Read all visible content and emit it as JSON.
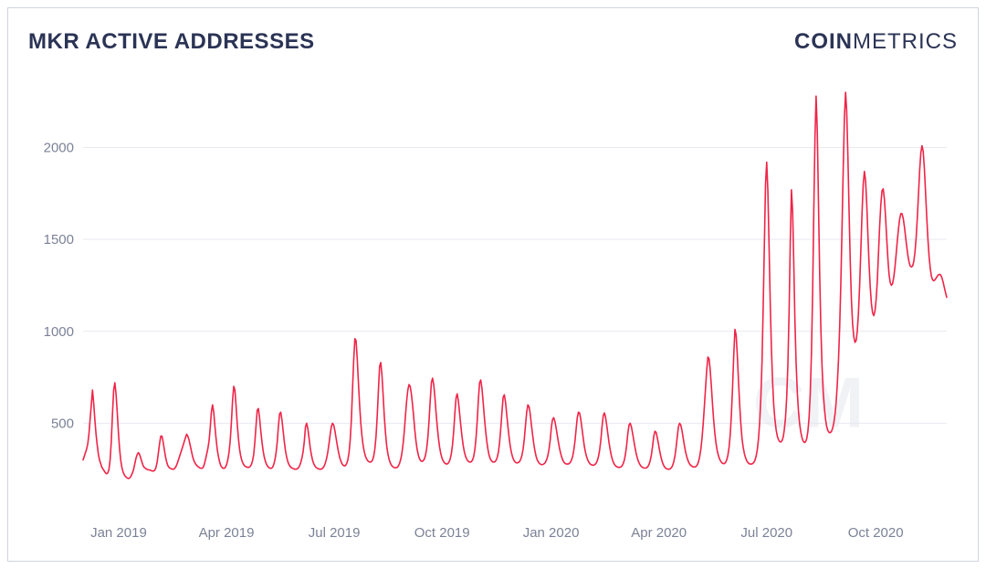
{
  "title": "MKR ACTIVE ADDRESSES",
  "title_color": "#2b3455",
  "brand": {
    "bold": "COIN",
    "rest": "METRICS",
    "color": "#2b3455"
  },
  "watermark": "CM",
  "chart": {
    "type": "line",
    "background_color": "#ffffff",
    "grid_color": "#e7e9f0",
    "axis_label_color": "#7b8296",
    "axis_label_fontsize": 15,
    "line_color": "#ef2447",
    "line_width": 1.6,
    "ylim": [
      0,
      2400
    ],
    "yticks": [
      500,
      1000,
      1500,
      2000
    ],
    "xticks": [
      {
        "i": 30,
        "label": "Jan 2019"
      },
      {
        "i": 121,
        "label": "Apr 2019"
      },
      {
        "i": 212,
        "label": "Jul 2019"
      },
      {
        "i": 303,
        "label": "Oct 2019"
      },
      {
        "i": 395,
        "label": "Jan 2020"
      },
      {
        "i": 486,
        "label": "Apr 2020"
      },
      {
        "i": 577,
        "label": "Jul 2020"
      },
      {
        "i": 669,
        "label": "Oct 2020"
      }
    ],
    "n_points": 730,
    "values": [
      300,
      320,
      340,
      360,
      390,
      440,
      520,
      600,
      680,
      610,
      520,
      440,
      380,
      330,
      300,
      280,
      260,
      250,
      240,
      230,
      225,
      230,
      250,
      300,
      400,
      550,
      680,
      720,
      660,
      560,
      450,
      360,
      300,
      260,
      235,
      220,
      210,
      205,
      200,
      200,
      205,
      215,
      230,
      250,
      280,
      310,
      330,
      340,
      330,
      310,
      290,
      270,
      260,
      255,
      250,
      248,
      246,
      244,
      242,
      240,
      240,
      245,
      260,
      290,
      340,
      390,
      430,
      430,
      400,
      360,
      320,
      290,
      270,
      260,
      255,
      252,
      250,
      250,
      255,
      265,
      280,
      300,
      320,
      340,
      360,
      380,
      400,
      420,
      440,
      430,
      410,
      380,
      350,
      320,
      300,
      285,
      275,
      268,
      262,
      258,
      255,
      255,
      260,
      275,
      300,
      330,
      360,
      400,
      470,
      560,
      600,
      560,
      490,
      420,
      360,
      320,
      290,
      270,
      260,
      255,
      255,
      260,
      275,
      300,
      340,
      400,
      500,
      620,
      700,
      680,
      600,
      500,
      420,
      360,
      320,
      295,
      280,
      270,
      265,
      262,
      260,
      260,
      265,
      275,
      295,
      330,
      400,
      490,
      570,
      580,
      530,
      460,
      400,
      350,
      315,
      290,
      275,
      265,
      258,
      255,
      255,
      260,
      275,
      300,
      340,
      400,
      480,
      550,
      560,
      520,
      460,
      400,
      350,
      315,
      290,
      275,
      265,
      258,
      255,
      252,
      250,
      250,
      252,
      258,
      268,
      285,
      310,
      345,
      400,
      480,
      500,
      470,
      420,
      370,
      330,
      300,
      280,
      268,
      260,
      255,
      252,
      250,
      250,
      252,
      258,
      268,
      285,
      310,
      345,
      390,
      440,
      480,
      500,
      490,
      460,
      420,
      380,
      345,
      315,
      295,
      280,
      272,
      268,
      270,
      280,
      300,
      340,
      410,
      520,
      680,
      840,
      960,
      950,
      850,
      720,
      600,
      500,
      430,
      380,
      345,
      320,
      305,
      295,
      290,
      288,
      290,
      300,
      320,
      360,
      430,
      540,
      680,
      810,
      830,
      760,
      650,
      540,
      450,
      380,
      335,
      305,
      285,
      272,
      265,
      260,
      258,
      258,
      260,
      268,
      282,
      305,
      340,
      390,
      460,
      540,
      620,
      680,
      710,
      700,
      660,
      600,
      530,
      460,
      400,
      355,
      325,
      305,
      295,
      292,
      295,
      305,
      325,
      360,
      420,
      510,
      620,
      720,
      745,
      710,
      640,
      560,
      485,
      420,
      370,
      335,
      310,
      295,
      285,
      280,
      278,
      280,
      288,
      305,
      335,
      385,
      460,
      560,
      640,
      660,
      620,
      555,
      490,
      430,
      380,
      345,
      320,
      305,
      295,
      290,
      288,
      290,
      300,
      320,
      360,
      425,
      520,
      630,
      720,
      735,
      690,
      615,
      535,
      465,
      405,
      360,
      328,
      308,
      296,
      290,
      288,
      290,
      298,
      315,
      345,
      395,
      470,
      560,
      640,
      655,
      615,
      550,
      485,
      425,
      378,
      342,
      317,
      300,
      290,
      285,
      284,
      286,
      292,
      304,
      325,
      360,
      415,
      490,
      560,
      600,
      590,
      550,
      495,
      440,
      390,
      350,
      320,
      300,
      288,
      280,
      276,
      275,
      276,
      280,
      288,
      302,
      325,
      360,
      410,
      480,
      520,
      530,
      510,
      475,
      435,
      395,
      360,
      332,
      310,
      295,
      285,
      280,
      278,
      278,
      280,
      286,
      298,
      318,
      350,
      398,
      465,
      530,
      560,
      555,
      520,
      470,
      420,
      376,
      342,
      316,
      298,
      286,
      278,
      274,
      272,
      272,
      275,
      282,
      295,
      318,
      354,
      408,
      480,
      540,
      556,
      535,
      492,
      442,
      394,
      354,
      322,
      298,
      282,
      272,
      266,
      262,
      260,
      260,
      262,
      268,
      280,
      300,
      332,
      380,
      445,
      490,
      500,
      480,
      445,
      406,
      370,
      338,
      312,
      292,
      278,
      268,
      262,
      258,
      256,
      256,
      258,
      264,
      276,
      296,
      328,
      375,
      430,
      456,
      450,
      423,
      388,
      352,
      320,
      294,
      276,
      264,
      256,
      252,
      250,
      250,
      252,
      258,
      270,
      290,
      322,
      370,
      430,
      480,
      500,
      490,
      460,
      420,
      380,
      345,
      318,
      298,
      284,
      274,
      268,
      264,
      262,
      262,
      265,
      274,
      290,
      316,
      356,
      416,
      495,
      590,
      690,
      790,
      860,
      850,
      790,
      700,
      600,
      510,
      440,
      386,
      348,
      322,
      304,
      292,
      284,
      280,
      280,
      286,
      300,
      326,
      370,
      440,
      545,
      695,
      870,
      1010,
      980,
      870,
      730,
      600,
      495,
      420,
      370,
      336,
      312,
      296,
      286,
      280,
      278,
      278,
      280,
      286,
      298,
      320,
      356,
      415,
      505,
      640,
      840,
      1120,
      1460,
      1800,
      1920,
      1760,
      1460,
      1150,
      900,
      720,
      600,
      520,
      465,
      430,
      410,
      400,
      398,
      405,
      425,
      465,
      530,
      640,
      820,
      1100,
      1480,
      1770,
      1650,
      1360,
      1060,
      830,
      670,
      565,
      495,
      450,
      420,
      402,
      395,
      398,
      415,
      455,
      530,
      660,
      880,
      1210,
      1660,
      2060,
      2280,
      2090,
      1700,
      1320,
      1020,
      810,
      670,
      580,
      520,
      482,
      460,
      450,
      448,
      455,
      472,
      502,
      548,
      615,
      710,
      840,
      1020,
      1260,
      1560,
      1880,
      2160,
      2300,
      2200,
      1960,
      1660,
      1380,
      1170,
      1040,
      970,
      940,
      950,
      1000,
      1100,
      1250,
      1440,
      1640,
      1800,
      1870,
      1820,
      1690,
      1530,
      1370,
      1240,
      1150,
      1100,
      1085,
      1110,
      1175,
      1280,
      1420,
      1570,
      1690,
      1765,
      1775,
      1720,
      1620,
      1500,
      1390,
      1310,
      1265,
      1250,
      1260,
      1295,
      1350,
      1420,
      1495,
      1560,
      1610,
      1640,
      1640,
      1615,
      1570,
      1515,
      1460,
      1410,
      1375,
      1355,
      1350,
      1355,
      1380,
      1430,
      1510,
      1620,
      1750,
      1880,
      1970,
      2010,
      1980,
      1885,
      1755,
      1620,
      1500,
      1405,
      1340,
      1300,
      1280,
      1275,
      1280,
      1290,
      1300,
      1308,
      1310,
      1305,
      1290,
      1266,
      1238,
      1210,
      1185
    ]
  }
}
